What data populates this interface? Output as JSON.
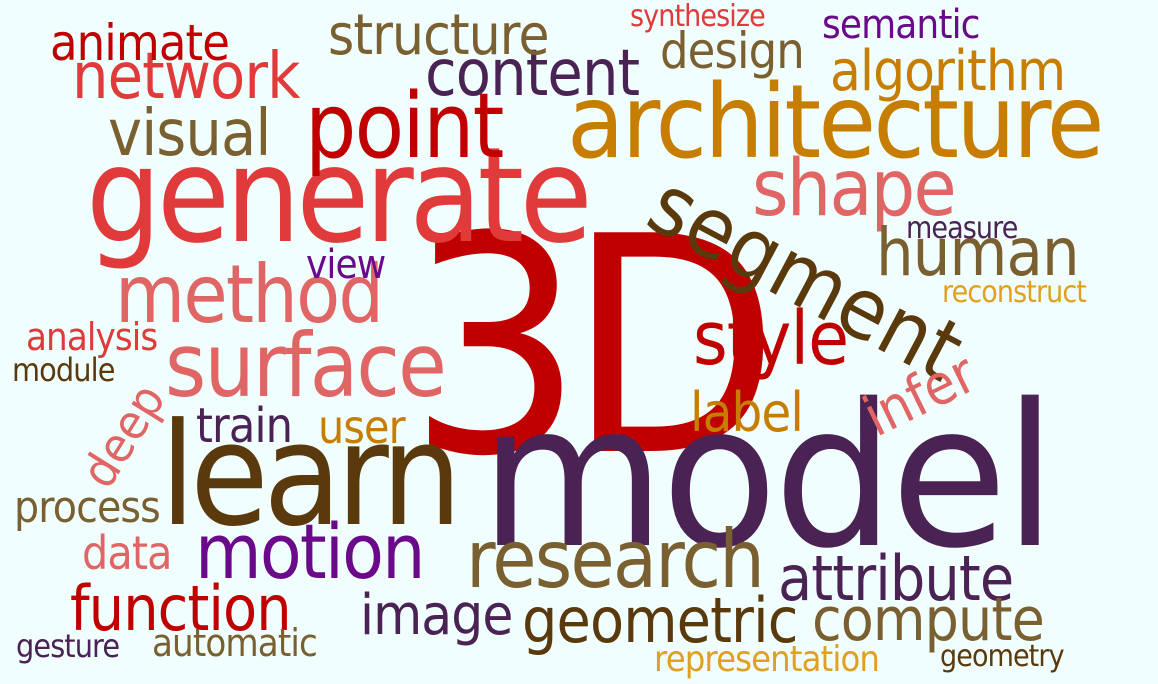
{
  "words": [
    {
      "id": "3d",
      "text": "3D",
      "color": "#c00000"
    },
    {
      "id": "model",
      "text": "model",
      "color": "#4a2254"
    },
    {
      "id": "learn",
      "text": "learn",
      "color": "#5a3a0c"
    },
    {
      "id": "generate",
      "text": "generate",
      "color": "#e03a3a"
    },
    {
      "id": "architecture",
      "text": "architecture",
      "color": "#c67d00"
    },
    {
      "id": "segment",
      "text": "segment",
      "color": "#5a3a0c"
    },
    {
      "id": "surface",
      "text": "surface",
      "color": "#e06666"
    },
    {
      "id": "method",
      "text": "method",
      "color": "#e06666"
    },
    {
      "id": "point",
      "text": "point",
      "color": "#c00000"
    },
    {
      "id": "shape",
      "text": "shape",
      "color": "#e06666"
    },
    {
      "id": "research",
      "text": "research",
      "color": "#7a6030"
    },
    {
      "id": "motion",
      "text": "motion",
      "color": "#6a0a8a"
    },
    {
      "id": "style",
      "text": "style",
      "color": "#c00000"
    },
    {
      "id": "content",
      "text": "content",
      "color": "#4a2254"
    },
    {
      "id": "network",
      "text": "network",
      "color": "#e03a3a"
    },
    {
      "id": "visual",
      "text": "visual",
      "color": "#7a6030"
    },
    {
      "id": "human",
      "text": "human",
      "color": "#7a6030"
    },
    {
      "id": "geometric",
      "text": "geometric",
      "color": "#5a3a0c"
    },
    {
      "id": "attribute",
      "text": "attribute",
      "color": "#4a2254"
    },
    {
      "id": "function",
      "text": "function",
      "color": "#c00000"
    },
    {
      "id": "compute",
      "text": "compute",
      "color": "#7a6030"
    },
    {
      "id": "algorithm",
      "text": "algorithm",
      "color": "#c67d00"
    },
    {
      "id": "structure",
      "text": "structure",
      "color": "#7a6030"
    },
    {
      "id": "image",
      "text": "image",
      "color": "#4a2254"
    },
    {
      "id": "label",
      "text": "label",
      "color": "#c67d00"
    },
    {
      "id": "infer",
      "text": "infer",
      "color": "#e06666"
    },
    {
      "id": "animate",
      "text": "animate",
      "color": "#c00000"
    },
    {
      "id": "design",
      "text": "design",
      "color": "#7a6030"
    },
    {
      "id": "deep",
      "text": "deep",
      "color": "#e06666"
    },
    {
      "id": "train",
      "text": "train",
      "color": "#4a2254"
    },
    {
      "id": "user",
      "text": "user",
      "color": "#c67d00"
    },
    {
      "id": "data",
      "text": "data",
      "color": "#e06666"
    },
    {
      "id": "process",
      "text": "process",
      "color": "#7a6030"
    },
    {
      "id": "semantic",
      "text": "semantic",
      "color": "#6a0a8a"
    },
    {
      "id": "view",
      "text": "view",
      "color": "#6a0a8a"
    },
    {
      "id": "automatic",
      "text": "automatic",
      "color": "#7a6030"
    },
    {
      "id": "analysis",
      "text": "analysis",
      "color": "#e03a3a"
    },
    {
      "id": "representation",
      "text": "representation",
      "color": "#e0a020"
    },
    {
      "id": "synthesize",
      "text": "synthesize",
      "color": "#e03a3a"
    },
    {
      "id": "measure",
      "text": "measure",
      "color": "#4a2254"
    },
    {
      "id": "reconstruct",
      "text": "reconstruct",
      "color": "#e0a020"
    },
    {
      "id": "module",
      "text": "module",
      "color": "#5a3a0c"
    },
    {
      "id": "gesture",
      "text": "gesture",
      "color": "#4a2254"
    },
    {
      "id": "geometry",
      "text": "geometry",
      "color": "#5a3a0c"
    }
  ]
}
